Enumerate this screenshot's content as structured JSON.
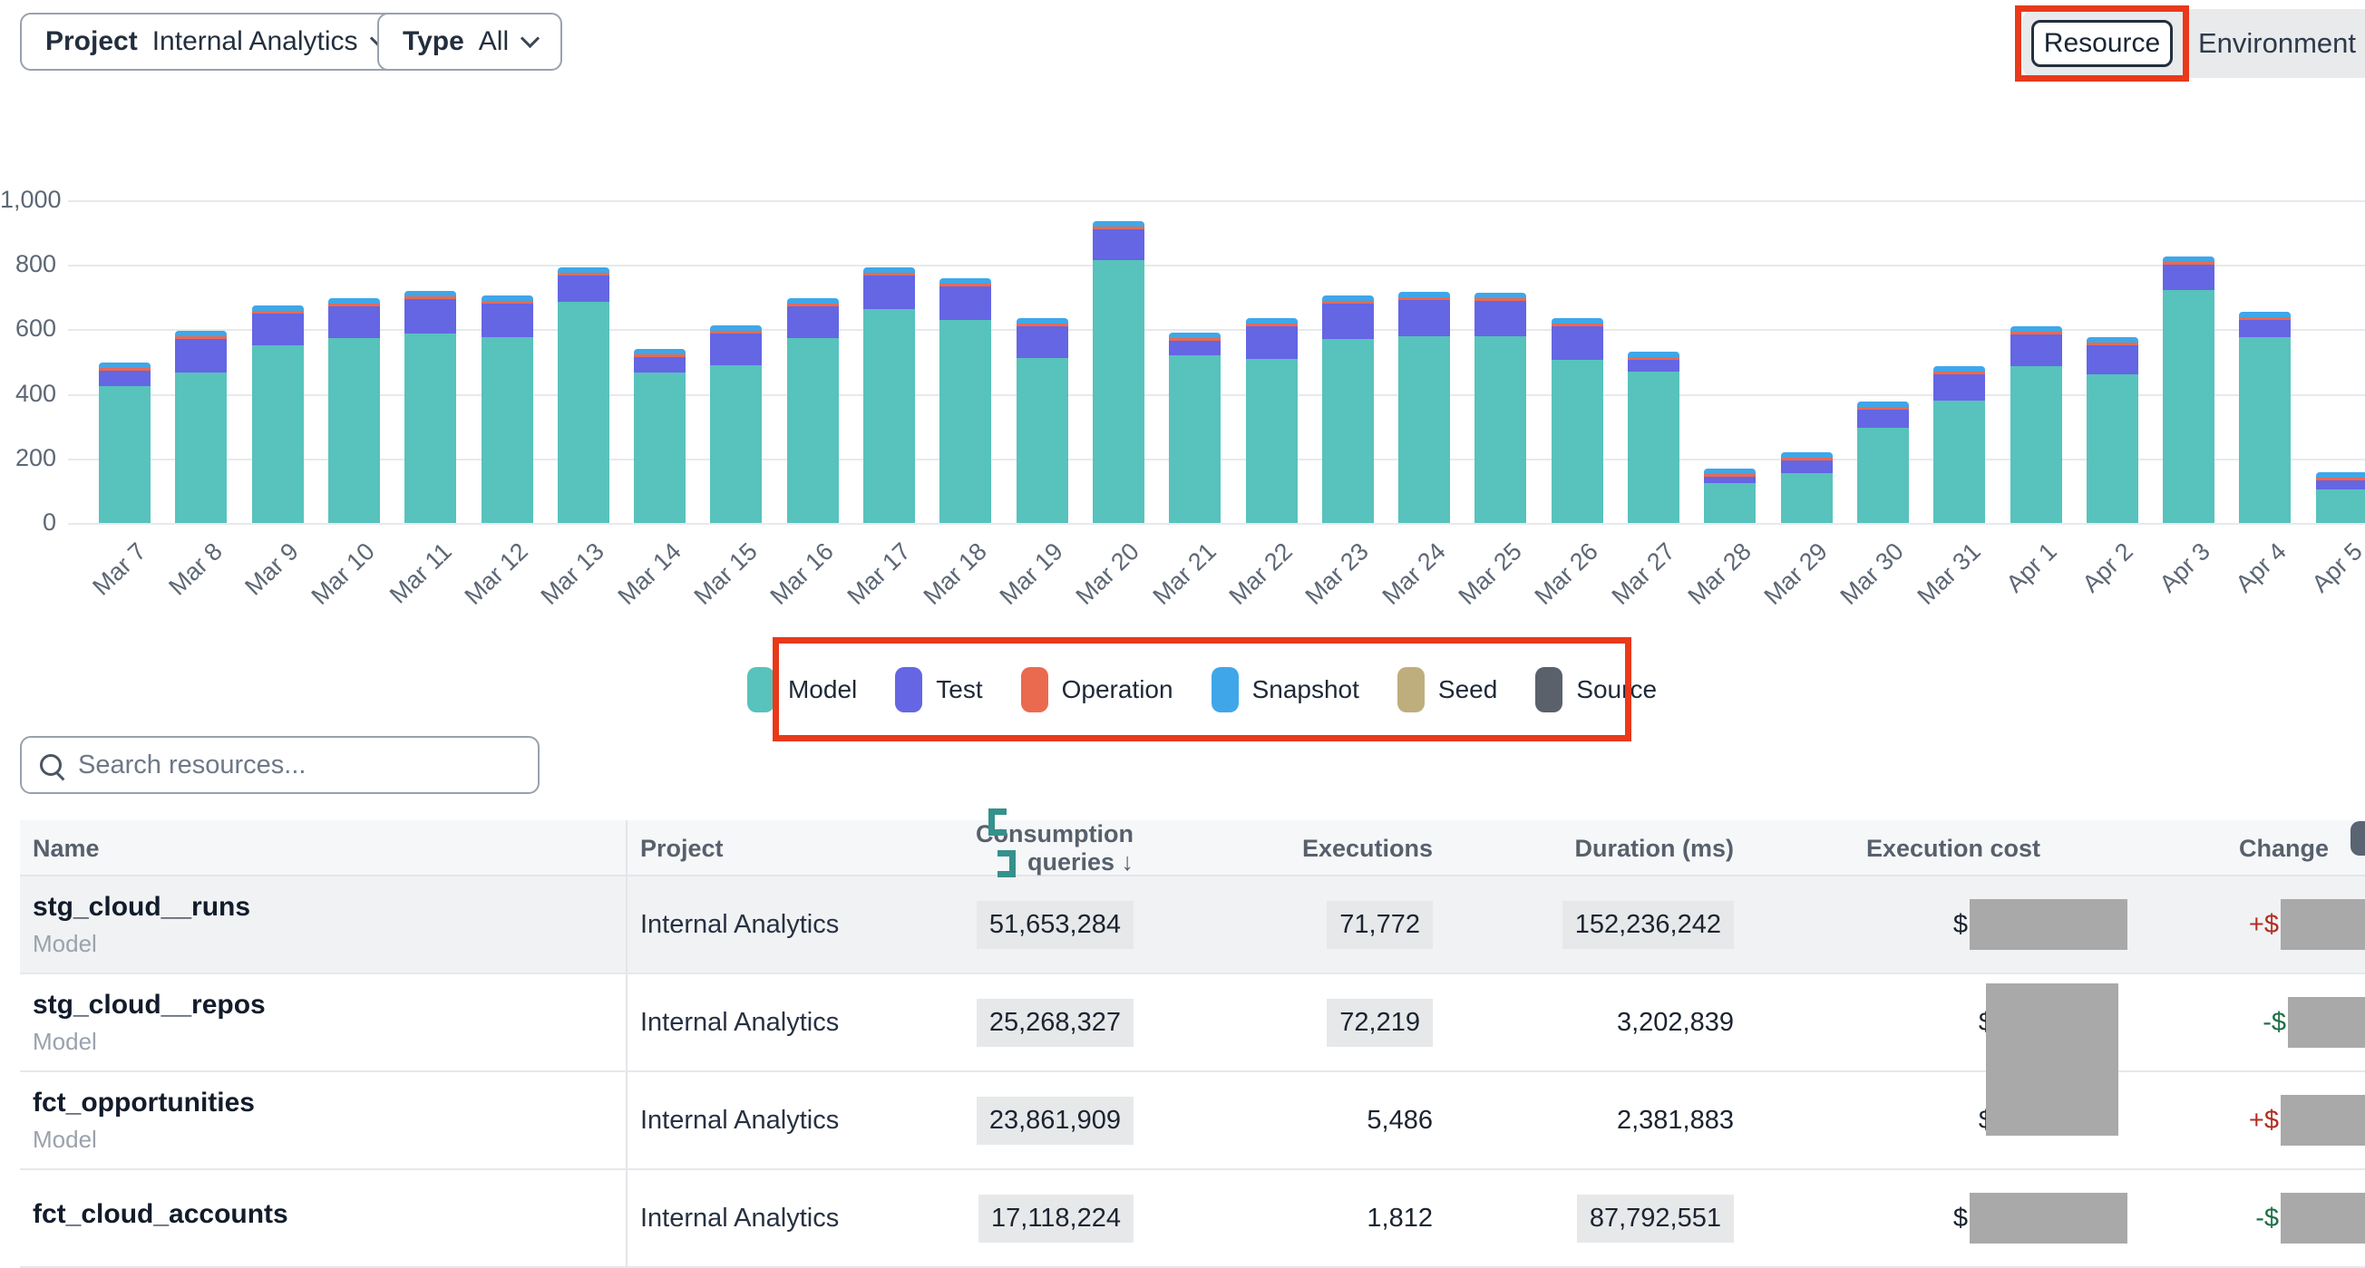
{
  "filters": {
    "project": {
      "label": "Project",
      "value": "Internal Analytics"
    },
    "type": {
      "label": "Type",
      "value": "All"
    }
  },
  "view_toggle": {
    "options": [
      "Resource",
      "Environment"
    ],
    "selected": "Resource"
  },
  "chart_data": {
    "type": "bar",
    "stacked": true,
    "categories": [
      "Mar 7",
      "Mar 8",
      "Mar 9",
      "Mar 10",
      "Mar 11",
      "Mar 12",
      "Mar 13",
      "Mar 14",
      "Mar 15",
      "Mar 16",
      "Mar 17",
      "Mar 18",
      "Mar 19",
      "Mar 20",
      "Mar 21",
      "Mar 22",
      "Mar 23",
      "Mar 24",
      "Mar 25",
      "Mar 26",
      "Mar 27",
      "Mar 28",
      "Mar 29",
      "Mar 30",
      "Mar 31",
      "Apr 1",
      "Apr 2",
      "Apr 3",
      "Apr 4",
      "Apr 5"
    ],
    "series": [
      {
        "name": "Model",
        "color": "#58C2BC",
        "values": [
          425,
          465,
          550,
          572,
          588,
          576,
          686,
          465,
          488,
          572,
          662,
          630,
          510,
          814,
          520,
          508,
          570,
          578,
          578,
          507,
          470,
          123,
          155,
          295,
          380,
          487,
          462,
          722,
          577,
          104
        ]
      },
      {
        "name": "Test",
        "color": "#6466E3",
        "values": [
          48,
          105,
          100,
          100,
          105,
          105,
          80,
          48,
          98,
          100,
          105,
          103,
          100,
          95,
          45,
          103,
          110,
          112,
          110,
          104,
          36,
          20,
          40,
          55,
          80,
          98,
          88,
          80,
          53,
          27
        ]
      },
      {
        "name": "Operation",
        "color": "#EA6A50",
        "values": [
          3,
          3,
          3,
          3,
          3,
          3,
          3,
          2,
          2,
          3,
          3,
          3,
          3,
          3,
          3,
          3,
          3,
          4,
          3,
          3,
          2,
          2,
          2,
          2,
          2,
          2,
          2,
          2,
          2,
          1
        ]
      },
      {
        "name": "Snapshot",
        "color": "#3FA7E9",
        "values": [
          6,
          5,
          8,
          8,
          6,
          6,
          8,
          5,
          5,
          8,
          8,
          6,
          6,
          8,
          5,
          5,
          8,
          8,
          8,
          5,
          3,
          2,
          2,
          3,
          3,
          5,
          3,
          3,
          3,
          2
        ]
      },
      {
        "name": "Seed",
        "color": "#BFAE7D",
        "values": [
          0,
          0,
          0,
          0,
          0,
          0,
          0,
          0,
          0,
          0,
          0,
          0,
          0,
          0,
          0,
          0,
          0,
          0,
          0,
          0,
          0,
          0,
          0,
          0,
          0,
          0,
          0,
          0,
          0,
          0
        ]
      },
      {
        "name": "Source",
        "color": "#5A616B",
        "values": [
          0,
          0,
          0,
          0,
          0,
          0,
          0,
          0,
          0,
          0,
          0,
          0,
          0,
          0,
          0,
          0,
          0,
          0,
          0,
          0,
          0,
          0,
          0,
          0,
          0,
          0,
          0,
          0,
          0,
          0
        ]
      }
    ],
    "ylim": [
      0,
      1000
    ],
    "yticks": [
      {
        "v": 0,
        "label": "0"
      },
      {
        "v": 200,
        "label": "200"
      },
      {
        "v": 400,
        "label": "400"
      },
      {
        "v": 600,
        "label": "600"
      },
      {
        "v": 800,
        "label": "800"
      },
      {
        "v": 1000,
        "label": "1,000"
      }
    ],
    "grid": true,
    "legend_position": "bottom",
    "legend": [
      {
        "name": "Model",
        "color": "#58C2BC"
      },
      {
        "name": "Test",
        "color": "#6466E3"
      },
      {
        "name": "Operation",
        "color": "#EA6A50"
      },
      {
        "name": "Snapshot",
        "color": "#3FA7E9"
      },
      {
        "name": "Seed",
        "color": "#BFAE7D"
      },
      {
        "name": "Source",
        "color": "#5A616B"
      }
    ]
  },
  "search": {
    "placeholder": "Search resources..."
  },
  "table": {
    "columns": [
      {
        "label": "Name"
      },
      {
        "label": "Project"
      },
      {
        "label": "Consumption queries",
        "sorted": "desc",
        "sort_arrow": "↓"
      },
      {
        "label": "Executions"
      },
      {
        "label": "Duration (ms)"
      },
      {
        "label": "Execution cost"
      },
      {
        "label": "Change"
      }
    ],
    "rows": [
      {
        "name": "stg_cloud__runs",
        "type": "Model",
        "project": "Internal Analytics",
        "consumption_queries": "51,653,284",
        "executions": "71,772",
        "duration_ms": "152,236,242",
        "cost_prefix": "$",
        "cost_redacted": true,
        "change_sign": "+$",
        "change_direction": "up",
        "change_redacted": true,
        "highlights": {
          "cq": true,
          "exec": true,
          "dur": true
        },
        "row_highlight": true
      },
      {
        "name": "stg_cloud__repos",
        "type": "Model",
        "project": "Internal Analytics",
        "consumption_queries": "25,268,327",
        "executions": "72,219",
        "duration_ms": "3,202,839",
        "cost_prefix": "$",
        "cost_redacted": false,
        "change_sign": "-$",
        "change_direction": "down",
        "change_redacted": true,
        "highlights": {
          "cq": true,
          "exec": true,
          "dur": false
        },
        "row_highlight": false
      },
      {
        "name": "fct_opportunities",
        "type": "Model",
        "project": "Internal Analytics",
        "consumption_queries": "23,861,909",
        "executions": "5,486",
        "duration_ms": "2,381,883",
        "cost_prefix": "$",
        "cost_redacted": false,
        "change_sign": "+$",
        "change_direction": "up",
        "change_redacted": true,
        "highlights": {
          "cq": true,
          "exec": false,
          "dur": false
        },
        "row_highlight": false
      },
      {
        "name": "fct_cloud_accounts",
        "type": "",
        "project": "Internal Analytics",
        "consumption_queries": "17,118,224",
        "executions": "1,812",
        "duration_ms": "87,792,551",
        "cost_prefix": "$",
        "cost_redacted": true,
        "change_sign": "-$",
        "change_direction": "down",
        "change_redacted": true,
        "highlights": {
          "cq": true,
          "exec": false,
          "dur": true
        },
        "row_highlight": false
      }
    ]
  },
  "colors": {
    "annotation_red": "#E8391B",
    "change_up_red": "#B03022",
    "change_down_green": "#1F7048",
    "redaction_gray": "#A9A9A9"
  }
}
